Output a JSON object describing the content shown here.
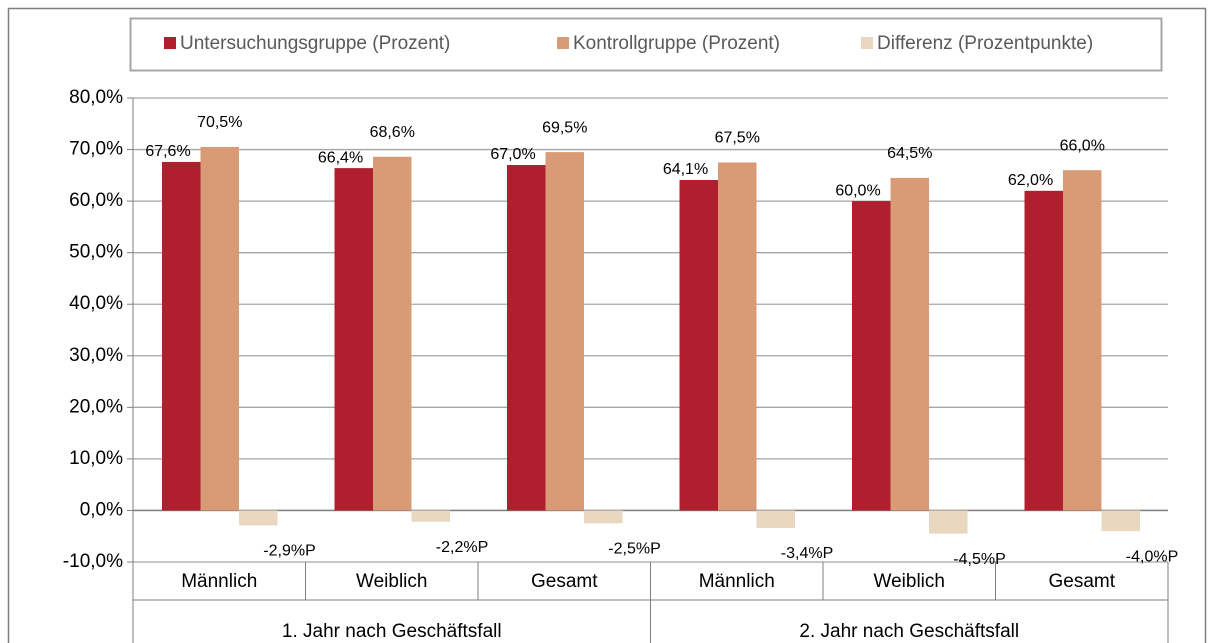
{
  "chart_data": {
    "type": "bar",
    "categories": [
      "Männlich",
      "Weiblich",
      "Gesamt",
      "Männlich",
      "Weiblich",
      "Gesamt"
    ],
    "group_labels": [
      "1. Jahr nach Geschäftsfall",
      "2. Jahr nach Geschäftsfall"
    ],
    "series": [
      {
        "name": "Untersuchungsgruppe (Prozent)",
        "color": "#b01f2e",
        "values": [
          67.6,
          66.4,
          67.0,
          64.1,
          60.0,
          62.0
        ],
        "value_labels": [
          "67,6%",
          "66,4%",
          "67,0%",
          "64,1%",
          "60,0%",
          "62,0%"
        ]
      },
      {
        "name": "Kontrollgruppe (Prozent)",
        "color": "#d89b76",
        "values": [
          70.5,
          68.6,
          69.5,
          67.5,
          64.5,
          66.0
        ],
        "value_labels": [
          "70,5%",
          "68,6%",
          "69,5%",
          "67,5%",
          "64,5%",
          "66,0%"
        ]
      },
      {
        "name": "Differenz (Prozentpunkte)",
        "color": "#ead7c0",
        "values": [
          -2.9,
          -2.2,
          -2.5,
          -3.4,
          -4.5,
          -4.0
        ],
        "value_labels": [
          "-2,9%P",
          "-2,2%P",
          "-2,5%P",
          "-3,4%P",
          "-4,5%P",
          "-4,0%P"
        ]
      }
    ],
    "ylim": [
      -10,
      80
    ],
    "yticks": [
      {
        "value": -10,
        "label": "-10,0%"
      },
      {
        "value": 0,
        "label": "0,0%"
      },
      {
        "value": 10,
        "label": "10,0%"
      },
      {
        "value": 20,
        "label": "20,0%"
      },
      {
        "value": 30,
        "label": "30,0%"
      },
      {
        "value": 40,
        "label": "40,0%"
      },
      {
        "value": 50,
        "label": "50,0%"
      },
      {
        "value": 60,
        "label": "60,0%"
      },
      {
        "value": 70,
        "label": "70,0%"
      },
      {
        "value": 80,
        "label": "80,0%"
      }
    ],
    "grid": true,
    "legend": "top"
  }
}
